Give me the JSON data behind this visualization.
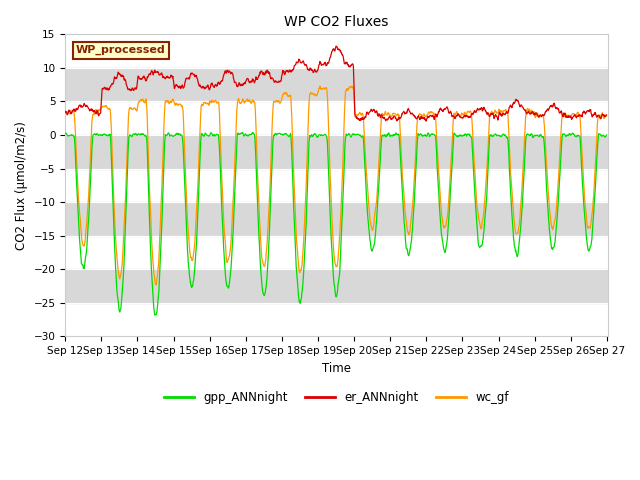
{
  "title": "WP CO2 Fluxes",
  "xlabel": "Time",
  "ylabel": "CO2 Flux (μmol/m2/s)",
  "ylim": [
    -30,
    15
  ],
  "yticks": [
    -30,
    -25,
    -20,
    -15,
    -10,
    -5,
    0,
    5,
    10,
    15
  ],
  "x_start_day": 12,
  "x_end_day": 27,
  "x_tick_days": [
    12,
    13,
    14,
    15,
    16,
    17,
    18,
    19,
    20,
    21,
    22,
    23,
    24,
    25,
    26,
    27
  ],
  "line_colors": {
    "gpp": "#00dd00",
    "er": "#dd0000",
    "wc": "#ff9900"
  },
  "legend_labels": [
    "gpp_ANNnight",
    "er_ANNnight",
    "wc_gf"
  ],
  "watermark_text": "WP_processed",
  "watermark_bg": "#ffffcc",
  "watermark_border": "#882200",
  "bg_band_color": "#d8d8d8",
  "plot_bg": "#ffffff",
  "fig_bg": "#ffffff",
  "pts_per_day": 96,
  "seed": 42,
  "gpp_amps": [
    20,
    26,
    27,
    23,
    23,
    24,
    25,
    24,
    17,
    18,
    17,
    17,
    18,
    17,
    17
  ],
  "er_bases": [
    3.5,
    7.0,
    8.5,
    7.0,
    7.5,
    8.0,
    9.5,
    10.5,
    2.5,
    2.5,
    2.8,
    2.8,
    3.2,
    3.0,
    2.8
  ],
  "er_peaks": [
    4.5,
    9.0,
    9.5,
    9.0,
    9.5,
    9.5,
    11.0,
    13.0,
    3.5,
    3.5,
    4.0,
    4.0,
    5.0,
    4.5,
    3.5
  ],
  "wc_night": [
    3.5,
    4.0,
    5.0,
    4.5,
    5.0,
    5.0,
    6.0,
    7.0,
    3.0,
    3.0,
    3.2,
    3.2,
    3.5,
    3.0,
    3.0
  ]
}
